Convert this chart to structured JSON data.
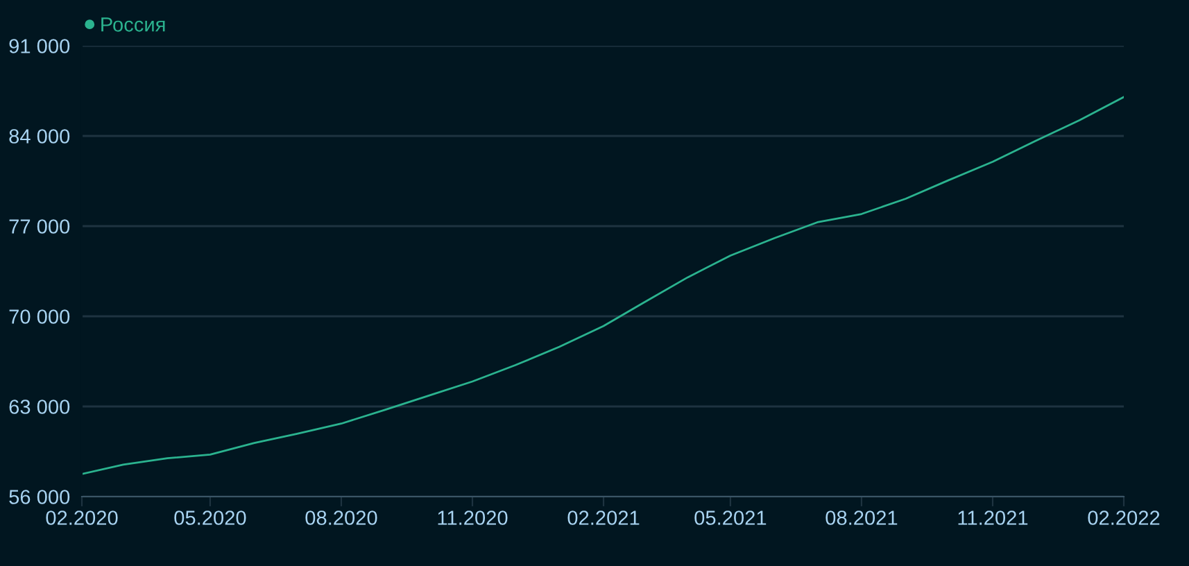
{
  "chart_data": {
    "type": "line",
    "x": [
      "2020-02",
      "2020-03",
      "2020-04",
      "2020-05",
      "2020-06",
      "2020-07",
      "2020-08",
      "2020-09",
      "2020-10",
      "2020-11",
      "2020-12",
      "2021-01",
      "2021-02",
      "2021-03",
      "2021-04",
      "2021-05",
      "2021-06",
      "2021-07",
      "2021-08",
      "2021-09",
      "2021-10",
      "2021-11",
      "2021-12",
      "2022-01",
      "2022-02"
    ],
    "series": [
      {
        "name": "Россия",
        "color": "#2bb38f",
        "values": [
          57760,
          58480,
          58980,
          59260,
          60170,
          60880,
          61670,
          62750,
          63830,
          64940,
          66200,
          67630,
          69250,
          71050,
          73020,
          74710,
          76070,
          77300,
          77940,
          79130,
          80560,
          81990,
          83610,
          85230,
          87020
        ]
      }
    ],
    "xlim": [
      "2020-02",
      "2022-02"
    ],
    "xticks": [
      {
        "value": "2020-02",
        "label": "02.2020"
      },
      {
        "value": "2020-05",
        "label": "05.2020"
      },
      {
        "value": "2020-08",
        "label": "08.2020"
      },
      {
        "value": "2020-11",
        "label": "11.2020"
      },
      {
        "value": "2021-02",
        "label": "02.2021"
      },
      {
        "value": "2021-05",
        "label": "05.2021"
      },
      {
        "value": "2021-08",
        "label": "08.2021"
      },
      {
        "value": "2021-11",
        "label": "11.2021"
      },
      {
        "value": "2022-02",
        "label": "02.2022"
      }
    ],
    "ylim": [
      56000,
      91000
    ],
    "yticks": [
      {
        "value": 56000,
        "label": "56 000"
      },
      {
        "value": 63000,
        "label": "63 000"
      },
      {
        "value": 70000,
        "label": "70 000"
      },
      {
        "value": 77000,
        "label": "77 000"
      },
      {
        "value": 84000,
        "label": "84 000"
      },
      {
        "value": 91000,
        "label": "91 000"
      }
    ],
    "grid": "y",
    "legend": "top left",
    "marker": "none",
    "line_style": "solid"
  }
}
